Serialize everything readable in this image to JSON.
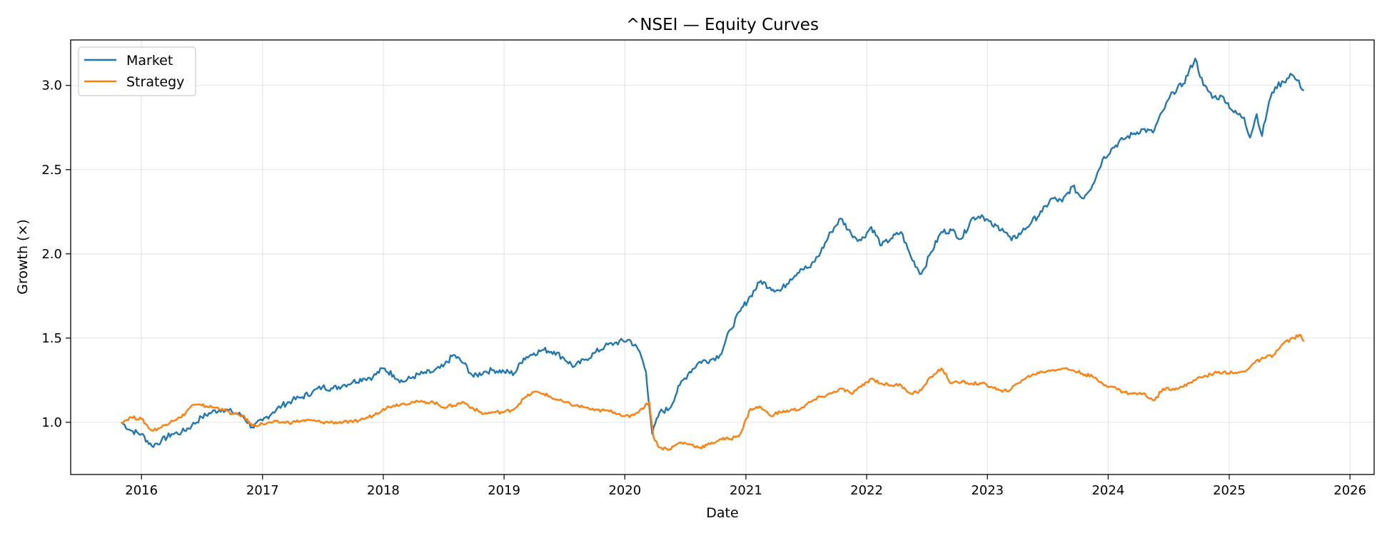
{
  "chart_data": {
    "type": "line",
    "title": "^NSEI — Equity Curves",
    "xlabel": "Date",
    "ylabel": "Growth (×)",
    "x_range": [
      "2015-06-01",
      "2026-03-15"
    ],
    "ylim": [
      0.69,
      3.27
    ],
    "x_ticks": [
      "2016",
      "2017",
      "2018",
      "2019",
      "2020",
      "2021",
      "2022",
      "2023",
      "2024",
      "2025",
      "2026"
    ],
    "y_ticks": [
      1.0,
      1.5,
      2.0,
      2.5,
      3.0
    ],
    "y_tick_labels": [
      "1.0",
      "1.5",
      "2.0",
      "2.5",
      "3.0"
    ],
    "grid": true,
    "legend_position": "top-left",
    "series": [
      {
        "name": "Market",
        "color": "#1f77b4",
        "points": [
          [
            "2015-11-01",
            1.0
          ],
          [
            "2015-12-01",
            0.95
          ],
          [
            "2016-01-01",
            0.93
          ],
          [
            "2016-02-01",
            0.86
          ],
          [
            "2016-03-01",
            0.89
          ],
          [
            "2016-04-01",
            0.93
          ],
          [
            "2016-05-01",
            0.94
          ],
          [
            "2016-06-01",
            0.98
          ],
          [
            "2016-07-01",
            1.03
          ],
          [
            "2016-08-01",
            1.06
          ],
          [
            "2016-09-01",
            1.08
          ],
          [
            "2016-10-01",
            1.06
          ],
          [
            "2016-11-01",
            1.04
          ],
          [
            "2016-12-01",
            0.97
          ],
          [
            "2017-01-01",
            1.01
          ],
          [
            "2017-02-01",
            1.06
          ],
          [
            "2017-03-01",
            1.1
          ],
          [
            "2017-04-01",
            1.13
          ],
          [
            "2017-05-01",
            1.15
          ],
          [
            "2017-06-01",
            1.18
          ],
          [
            "2017-07-01",
            1.21
          ],
          [
            "2017-08-01",
            1.2
          ],
          [
            "2017-09-01",
            1.22
          ],
          [
            "2017-10-01",
            1.24
          ],
          [
            "2017-11-01",
            1.26
          ],
          [
            "2017-12-01",
            1.27
          ],
          [
            "2018-01-01",
            1.32
          ],
          [
            "2018-02-01",
            1.28
          ],
          [
            "2018-03-01",
            1.24
          ],
          [
            "2018-04-01",
            1.27
          ],
          [
            "2018-05-01",
            1.29
          ],
          [
            "2018-06-01",
            1.3
          ],
          [
            "2018-07-01",
            1.33
          ],
          [
            "2018-08-01",
            1.4
          ],
          [
            "2018-09-01",
            1.35
          ],
          [
            "2018-10-01",
            1.27
          ],
          [
            "2018-11-01",
            1.3
          ],
          [
            "2018-12-01",
            1.31
          ],
          [
            "2019-01-01",
            1.3
          ],
          [
            "2019-02-01",
            1.29
          ],
          [
            "2019-03-01",
            1.38
          ],
          [
            "2019-04-01",
            1.41
          ],
          [
            "2019-05-01",
            1.43
          ],
          [
            "2019-06-01",
            1.42
          ],
          [
            "2019-07-01",
            1.38
          ],
          [
            "2019-08-01",
            1.33
          ],
          [
            "2019-09-01",
            1.37
          ],
          [
            "2019-10-01",
            1.41
          ],
          [
            "2019-11-01",
            1.45
          ],
          [
            "2019-12-01",
            1.47
          ],
          [
            "2020-01-15",
            1.49
          ],
          [
            "2020-02-15",
            1.42
          ],
          [
            "2020-03-05",
            1.3
          ],
          [
            "2020-03-24",
            0.93
          ],
          [
            "2020-04-15",
            1.06
          ],
          [
            "2020-05-15",
            1.08
          ],
          [
            "2020-06-15",
            1.22
          ],
          [
            "2020-07-15",
            1.3
          ],
          [
            "2020-08-15",
            1.36
          ],
          [
            "2020-09-15",
            1.37
          ],
          [
            "2020-10-15",
            1.4
          ],
          [
            "2020-11-15",
            1.55
          ],
          [
            "2020-12-15",
            1.66
          ],
          [
            "2021-01-15",
            1.75
          ],
          [
            "2021-02-15",
            1.84
          ],
          [
            "2021-03-15",
            1.8
          ],
          [
            "2021-04-15",
            1.78
          ],
          [
            "2021-05-15",
            1.85
          ],
          [
            "2021-06-15",
            1.91
          ],
          [
            "2021-07-15",
            1.92
          ],
          [
            "2021-08-15",
            2.01
          ],
          [
            "2021-09-15",
            2.13
          ],
          [
            "2021-10-15",
            2.21
          ],
          [
            "2021-11-15",
            2.12
          ],
          [
            "2021-12-15",
            2.08
          ],
          [
            "2022-01-15",
            2.16
          ],
          [
            "2022-02-15",
            2.05
          ],
          [
            "2022-03-15",
            2.09
          ],
          [
            "2022-04-15",
            2.13
          ],
          [
            "2022-05-15",
            1.98
          ],
          [
            "2022-06-15",
            1.88
          ],
          [
            "2022-07-15",
            2.01
          ],
          [
            "2022-08-15",
            2.13
          ],
          [
            "2022-09-15",
            2.14
          ],
          [
            "2022-10-15",
            2.09
          ],
          [
            "2022-11-15",
            2.21
          ],
          [
            "2022-12-15",
            2.23
          ],
          [
            "2023-01-15",
            2.17
          ],
          [
            "2023-02-15",
            2.15
          ],
          [
            "2023-03-15",
            2.08
          ],
          [
            "2023-04-15",
            2.13
          ],
          [
            "2023-05-15",
            2.19
          ],
          [
            "2023-06-15",
            2.25
          ],
          [
            "2023-07-15",
            2.33
          ],
          [
            "2023-08-15",
            2.31
          ],
          [
            "2023-09-15",
            2.4
          ],
          [
            "2023-10-15",
            2.33
          ],
          [
            "2023-11-15",
            2.41
          ],
          [
            "2023-12-15",
            2.56
          ],
          [
            "2024-01-15",
            2.63
          ],
          [
            "2024-02-15",
            2.68
          ],
          [
            "2024-03-15",
            2.71
          ],
          [
            "2024-04-15",
            2.74
          ],
          [
            "2024-05-15",
            2.72
          ],
          [
            "2024-06-15",
            2.85
          ],
          [
            "2024-07-15",
            2.96
          ],
          [
            "2024-08-15",
            3.01
          ],
          [
            "2024-09-20",
            3.16
          ],
          [
            "2024-10-15",
            3.0
          ],
          [
            "2024-11-15",
            2.93
          ],
          [
            "2024-12-15",
            2.93
          ],
          [
            "2025-01-15",
            2.84
          ],
          [
            "2025-02-15",
            2.81
          ],
          [
            "2025-03-05",
            2.69
          ],
          [
            "2025-03-25",
            2.83
          ],
          [
            "2025-04-10",
            2.7
          ],
          [
            "2025-05-01",
            2.9
          ],
          [
            "2025-05-20",
            2.99
          ],
          [
            "2025-06-15",
            3.02
          ],
          [
            "2025-07-05",
            3.07
          ],
          [
            "2025-07-25",
            3.03
          ],
          [
            "2025-08-15",
            2.97
          ]
        ]
      },
      {
        "name": "Strategy",
        "color": "#ff7f0e",
        "points": [
          [
            "2015-11-01",
            1.0
          ],
          [
            "2015-12-01",
            1.03
          ],
          [
            "2016-01-01",
            1.02
          ],
          [
            "2016-02-01",
            0.95
          ],
          [
            "2016-03-01",
            0.97
          ],
          [
            "2016-04-01",
            1.01
          ],
          [
            "2016-05-01",
            1.03
          ],
          [
            "2016-06-01",
            1.1
          ],
          [
            "2016-07-01",
            1.1
          ],
          [
            "2016-08-01",
            1.09
          ],
          [
            "2016-09-01",
            1.08
          ],
          [
            "2016-10-01",
            1.05
          ],
          [
            "2016-11-01",
            1.04
          ],
          [
            "2016-12-01",
            0.98
          ],
          [
            "2017-01-01",
            0.99
          ],
          [
            "2017-02-01",
            1.0
          ],
          [
            "2017-03-01",
            1.0
          ],
          [
            "2017-04-01",
            1.0
          ],
          [
            "2017-05-01",
            1.01
          ],
          [
            "2017-06-01",
            1.01
          ],
          [
            "2017-07-01",
            1.0
          ],
          [
            "2017-08-01",
            1.0
          ],
          [
            "2017-09-01",
            1.0
          ],
          [
            "2017-10-01",
            1.0
          ],
          [
            "2017-11-01",
            1.02
          ],
          [
            "2017-12-01",
            1.04
          ],
          [
            "2018-01-01",
            1.08
          ],
          [
            "2018-02-01",
            1.1
          ],
          [
            "2018-03-01",
            1.11
          ],
          [
            "2018-04-01",
            1.12
          ],
          [
            "2018-05-01",
            1.12
          ],
          [
            "2018-06-01",
            1.12
          ],
          [
            "2018-07-01",
            1.09
          ],
          [
            "2018-08-01",
            1.1
          ],
          [
            "2018-09-01",
            1.12
          ],
          [
            "2018-10-01",
            1.08
          ],
          [
            "2018-11-01",
            1.05
          ],
          [
            "2018-12-01",
            1.06
          ],
          [
            "2019-01-01",
            1.06
          ],
          [
            "2019-02-01",
            1.08
          ],
          [
            "2019-03-01",
            1.14
          ],
          [
            "2019-04-01",
            1.18
          ],
          [
            "2019-05-01",
            1.17
          ],
          [
            "2019-06-01",
            1.14
          ],
          [
            "2019-07-01",
            1.12
          ],
          [
            "2019-08-01",
            1.1
          ],
          [
            "2019-09-01",
            1.09
          ],
          [
            "2019-10-01",
            1.07
          ],
          [
            "2019-11-01",
            1.07
          ],
          [
            "2019-12-01",
            1.06
          ],
          [
            "2020-01-15",
            1.03
          ],
          [
            "2020-02-15",
            1.07
          ],
          [
            "2020-03-15",
            1.12
          ],
          [
            "2020-03-28",
            0.91
          ],
          [
            "2020-04-15",
            0.85
          ],
          [
            "2020-05-15",
            0.84
          ],
          [
            "2020-06-15",
            0.88
          ],
          [
            "2020-07-15",
            0.87
          ],
          [
            "2020-08-15",
            0.85
          ],
          [
            "2020-09-15",
            0.87
          ],
          [
            "2020-10-15",
            0.9
          ],
          [
            "2020-11-15",
            0.9
          ],
          [
            "2020-12-15",
            0.93
          ],
          [
            "2021-01-15",
            1.08
          ],
          [
            "2021-02-15",
            1.09
          ],
          [
            "2021-03-15",
            1.04
          ],
          [
            "2021-04-15",
            1.06
          ],
          [
            "2021-05-15",
            1.07
          ],
          [
            "2021-06-15",
            1.08
          ],
          [
            "2021-07-15",
            1.12
          ],
          [
            "2021-08-15",
            1.15
          ],
          [
            "2021-09-15",
            1.17
          ],
          [
            "2021-10-15",
            1.2
          ],
          [
            "2021-11-15",
            1.17
          ],
          [
            "2021-12-15",
            1.21
          ],
          [
            "2022-01-15",
            1.26
          ],
          [
            "2022-02-15",
            1.23
          ],
          [
            "2022-03-15",
            1.22
          ],
          [
            "2022-04-15",
            1.22
          ],
          [
            "2022-05-15",
            1.17
          ],
          [
            "2022-06-15",
            1.19
          ],
          [
            "2022-07-15",
            1.27
          ],
          [
            "2022-08-15",
            1.32
          ],
          [
            "2022-09-15",
            1.23
          ],
          [
            "2022-10-15",
            1.24
          ],
          [
            "2022-11-15",
            1.23
          ],
          [
            "2022-12-15",
            1.23
          ],
          [
            "2023-01-15",
            1.21
          ],
          [
            "2023-02-15",
            1.18
          ],
          [
            "2023-03-15",
            1.2
          ],
          [
            "2023-04-15",
            1.25
          ],
          [
            "2023-05-15",
            1.28
          ],
          [
            "2023-06-15",
            1.3
          ],
          [
            "2023-07-15",
            1.31
          ],
          [
            "2023-08-15",
            1.32
          ],
          [
            "2023-09-15",
            1.31
          ],
          [
            "2023-10-15",
            1.29
          ],
          [
            "2023-11-15",
            1.27
          ],
          [
            "2023-12-15",
            1.23
          ],
          [
            "2024-01-15",
            1.21
          ],
          [
            "2024-02-15",
            1.18
          ],
          [
            "2024-03-15",
            1.17
          ],
          [
            "2024-04-15",
            1.17
          ],
          [
            "2024-05-20",
            1.13
          ],
          [
            "2024-06-15",
            1.2
          ],
          [
            "2024-07-15",
            1.2
          ],
          [
            "2024-08-15",
            1.21
          ],
          [
            "2024-09-15",
            1.25
          ],
          [
            "2024-10-15",
            1.27
          ],
          [
            "2024-11-15",
            1.29
          ],
          [
            "2024-12-15",
            1.3
          ],
          [
            "2025-01-15",
            1.29
          ],
          [
            "2025-02-15",
            1.3
          ],
          [
            "2025-03-15",
            1.35
          ],
          [
            "2025-04-15",
            1.38
          ],
          [
            "2025-05-15",
            1.4
          ],
          [
            "2025-06-15",
            1.47
          ],
          [
            "2025-07-15",
            1.5
          ],
          [
            "2025-08-01",
            1.52
          ],
          [
            "2025-08-15",
            1.48
          ]
        ]
      }
    ]
  }
}
